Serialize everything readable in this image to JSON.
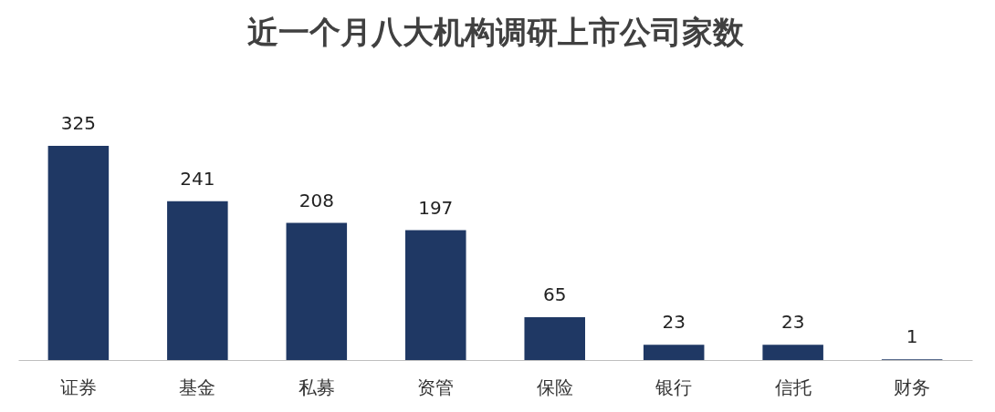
{
  "chart_data": {
    "type": "bar",
    "title": "近一个月八大机构调研上市公司家数",
    "categories": [
      "证券",
      "基金",
      "私募",
      "资管",
      "保险",
      "银行",
      "信托",
      "财务"
    ],
    "values": [
      325,
      241,
      208,
      197,
      65,
      23,
      23,
      1
    ],
    "color": "#1f3864",
    "data_labels": true
  }
}
